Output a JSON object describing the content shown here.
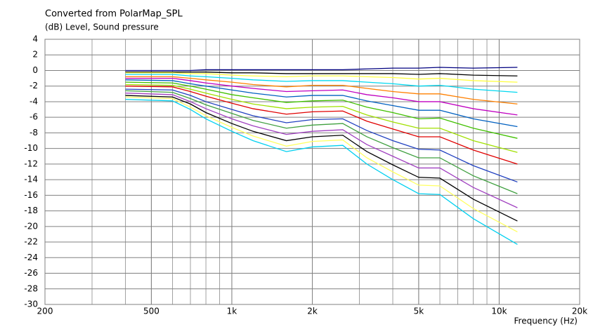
{
  "chart_data": {
    "type": "line",
    "title": "Converted from PolarMap_SPL",
    "y_label": "(dB)  Level, Sound pressure",
    "x_label": "Frequency  (Hz)",
    "x_scale": "log",
    "grid": true,
    "xlim": [
      200,
      20000
    ],
    "xticks": [
      200,
      500,
      {
        "value": 1000,
        "label": "1k"
      },
      {
        "value": 2000,
        "label": "2k"
      },
      {
        "value": 5000,
        "label": "5k"
      },
      {
        "value": 10000,
        "label": "10k"
      },
      {
        "value": 20000,
        "label": "20k"
      }
    ],
    "ylim": [
      -30,
      4
    ],
    "yticks": [
      4,
      2,
      0,
      -2,
      -4,
      -6,
      -8,
      -10,
      -12,
      -14,
      -16,
      -18,
      -20,
      -22,
      -24,
      -26,
      -28,
      -30
    ],
    "x": [
      400,
      600,
      700,
      800,
      1000,
      1200,
      1600,
      2000,
      2600,
      3200,
      4000,
      5000,
      6000,
      8000,
      11700
    ],
    "series": [
      {
        "color": "#000080",
        "values": [
          0,
          0,
          0,
          0.1,
          0.1,
          0.1,
          0.1,
          0.1,
          0.1,
          0.2,
          0.3,
          0.3,
          0.4,
          0.3,
          0.4
        ]
      },
      {
        "color": "#000000",
        "values": [
          -0.2,
          -0.2,
          -0.2,
          -0.2,
          -0.3,
          -0.3,
          -0.4,
          -0.4,
          -0.4,
          -0.4,
          -0.4,
          -0.5,
          -0.4,
          -0.6,
          -0.7
        ]
      },
      {
        "color": "#ffff40",
        "values": [
          -0.3,
          -0.3,
          -0.4,
          -0.4,
          -0.6,
          -0.7,
          -0.8,
          -0.7,
          -0.7,
          -0.8,
          -0.9,
          -1.1,
          -1.0,
          -1.3,
          -1.5
        ]
      },
      {
        "color": "#00d8f0",
        "values": [
          -0.5,
          -0.5,
          -0.7,
          -0.8,
          -1.0,
          -1.2,
          -1.4,
          -1.3,
          -1.3,
          -1.5,
          -1.7,
          -2.0,
          -1.9,
          -2.4,
          -2.8
        ]
      },
      {
        "color": "#ff8000",
        "values": [
          -0.8,
          -0.8,
          -1.0,
          -1.2,
          -1.5,
          -1.8,
          -2.1,
          -1.9,
          -1.9,
          -2.3,
          -2.7,
          -3.0,
          -3.0,
          -3.7,
          -4.3
        ]
      },
      {
        "color": "#c000c0",
        "values": [
          -1.0,
          -1.0,
          -1.3,
          -1.6,
          -2.0,
          -2.3,
          -2.7,
          -2.6,
          -2.5,
          -3.1,
          -3.5,
          -4.0,
          -4.0,
          -4.9,
          -5.7
        ]
      },
      {
        "color": "#0060c0",
        "values": [
          -1.2,
          -1.3,
          -1.7,
          -2.0,
          -2.5,
          -2.9,
          -3.4,
          -3.2,
          -3.2,
          -3.9,
          -4.5,
          -5.1,
          -5.1,
          -6.2,
          -7.2
        ]
      },
      {
        "color": "#40c000",
        "values": [
          -1.5,
          -1.6,
          -2.0,
          -2.4,
          -3.1,
          -3.5,
          -4.1,
          -3.9,
          -3.8,
          -4.7,
          -5.4,
          -6.2,
          -6.1,
          -7.4,
          -8.7
        ]
      },
      {
        "color": "#a0e000",
        "values": [
          -1.8,
          -1.9,
          -2.4,
          -2.9,
          -3.7,
          -4.3,
          -4.9,
          -4.7,
          -4.6,
          -5.7,
          -6.6,
          -7.4,
          -7.4,
          -9.0,
          -10.5
        ]
      },
      {
        "color": "#e00000",
        "values": [
          -2.0,
          -2.1,
          -2.7,
          -3.3,
          -4.2,
          -4.9,
          -5.6,
          -5.3,
          -5.2,
          -6.5,
          -7.5,
          -8.5,
          -8.5,
          -10.2,
          -12.0
        ]
      },
      {
        "color": "#2040c0",
        "values": [
          -2.4,
          -2.5,
          -3.2,
          -4.0,
          -5.0,
          -5.8,
          -6.7,
          -6.3,
          -6.2,
          -7.7,
          -9.0,
          -10.1,
          -10.2,
          -12.2,
          -14.3
        ]
      },
      {
        "color": "#40a040",
        "values": [
          -2.6,
          -2.8,
          -3.6,
          -4.4,
          -5.5,
          -6.4,
          -7.4,
          -7.0,
          -6.8,
          -8.5,
          -9.9,
          -11.2,
          -11.2,
          -13.5,
          -15.8
        ]
      },
      {
        "color": "#a040c0",
        "values": [
          -2.9,
          -3.1,
          -4.0,
          -4.9,
          -6.2,
          -7.1,
          -8.2,
          -7.8,
          -7.6,
          -9.5,
          -11.0,
          -12.5,
          -12.5,
          -15.0,
          -17.6
        ]
      },
      {
        "color": "#000000",
        "values": [
          -3.2,
          -3.4,
          -4.3,
          -5.4,
          -6.8,
          -7.8,
          -9.0,
          -8.5,
          -8.3,
          -10.4,
          -12.1,
          -13.7,
          -13.8,
          -16.5,
          -19.3
        ]
      },
      {
        "color": "#ffff60",
        "values": [
          -3.4,
          -3.6,
          -4.7,
          -5.8,
          -7.3,
          -8.4,
          -9.7,
          -9.1,
          -8.9,
          -11.2,
          -13.0,
          -14.7,
          -14.8,
          -17.7,
          -20.7
        ]
      },
      {
        "color": "#00d0f0",
        "values": [
          -3.7,
          -3.9,
          -5.0,
          -6.2,
          -7.8,
          -9.0,
          -10.4,
          -9.8,
          -9.6,
          -12.0,
          -14.0,
          -15.8,
          -15.9,
          -19.0,
          -22.3
        ]
      }
    ]
  }
}
